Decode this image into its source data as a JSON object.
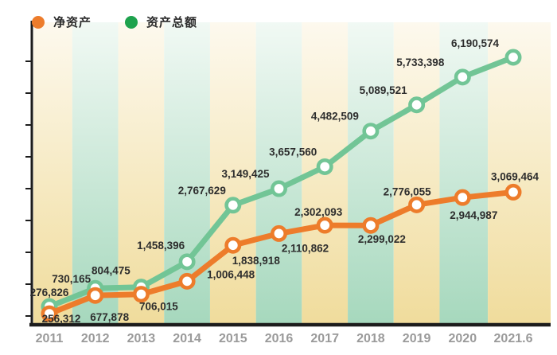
{
  "legend": {
    "items": [
      {
        "id": "net-assets",
        "label": "净资产",
        "color": "#ed7c2b"
      },
      {
        "id": "total-assets",
        "label": "资产总额",
        "color": "#1ea24d"
      }
    ]
  },
  "chart_data": {
    "type": "line",
    "title": "",
    "xlabel": "",
    "ylabel": "",
    "x_categories": [
      "2011",
      "2012",
      "2013",
      "2014",
      "2015",
      "2016",
      "2017",
      "2018",
      "2019",
      "2020",
      "2021.6"
    ],
    "series": [
      {
        "id": "total-assets",
        "name": "资产总额",
        "line_color": "#72c596",
        "legend_color": "#1ea24d",
        "values": [
          276826,
          730165,
          804475,
          1458396,
          2767629,
          3149425,
          3657560,
          4482509,
          5089521,
          5733398,
          6190574
        ],
        "label_pos": [
          "above",
          "above",
          "above",
          "above",
          "above",
          "above",
          "above",
          "above",
          "above",
          "above",
          "above"
        ],
        "label_offsets": [
          [
            0,
            -13
          ],
          [
            -30,
            -7
          ],
          [
            -38,
            -16
          ],
          [
            -33,
            -16
          ],
          [
            -39,
            -14
          ],
          [
            -42,
            -14
          ],
          [
            -40,
            -14
          ],
          [
            -45,
            -14
          ],
          [
            -42,
            -14
          ],
          [
            -53,
            -14
          ],
          [
            -48,
            -13
          ]
        ]
      },
      {
        "id": "net-assets",
        "name": "净资产",
        "line_color": "#ed7c2b",
        "legend_color": "#ed7c2b",
        "values": [
          256312,
          677878,
          706015,
          1006448,
          1838918,
          2110862,
          2302093,
          2299022,
          2776055,
          2944987,
          3069464
        ],
        "label_pos": [
          "below",
          "below",
          "below",
          "below",
          "below",
          "below",
          "above",
          "below",
          "above",
          "below",
          "above"
        ],
        "label_offsets": [
          [
            15,
            11
          ],
          [
            18,
            32
          ],
          [
            22,
            20
          ],
          [
            55,
            -4
          ],
          [
            29,
            24
          ],
          [
            33,
            23
          ],
          [
            -8,
            -12
          ],
          [
            14,
            22
          ],
          [
            -12,
            -12
          ],
          [
            14,
            27
          ],
          [
            2,
            -15
          ]
        ]
      }
    ],
    "ylim": [
      0,
      6600000
    ],
    "grid": false,
    "legend_position": "top-left",
    "background_bands": {
      "yellow_bottom": "#f0dc9c",
      "yellow_top": "#fdf9ee",
      "green_bottom": "#a6d8bd",
      "green_top": "#f1f9f4"
    },
    "axis_color": "#1c1c1c",
    "x_tick_label_color": "#9a9a9a",
    "value_label_color": "#2d2d2d"
  }
}
